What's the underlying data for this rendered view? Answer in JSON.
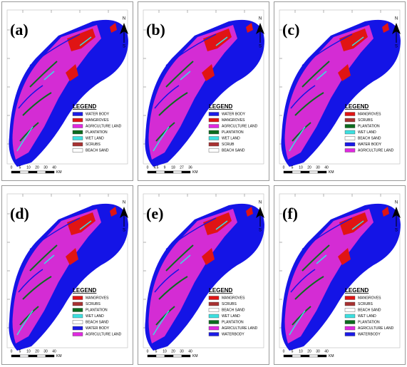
{
  "panels": [
    {
      "label": "(a)",
      "legend_title": "LEGEND",
      "legend": [
        {
          "label": "WATER BODY",
          "color": "#1a1ae6"
        },
        {
          "label": "MANGROVES",
          "color": "#e01414"
        },
        {
          "label": "AGRICULTURE LAND",
          "color": "#e028e0"
        },
        {
          "label": "PLANTATION",
          "color": "#0b6b1e"
        },
        {
          "label": "WET LAND",
          "color": "#3ce0e0"
        },
        {
          "label": "SCRUBS",
          "color": "#a83232"
        },
        {
          "label": "BEACH SAND",
          "color": "#ffffff"
        }
      ],
      "scale": [
        "0",
        "5",
        "10",
        "20",
        "30",
        "40"
      ],
      "scale_unit": "KM",
      "north": "N",
      "south": "S"
    },
    {
      "label": "(b)",
      "legend_title": "LEGEND",
      "legend": [
        {
          "label": "WATER BODY",
          "color": "#1a1ae6"
        },
        {
          "label": "MANGROVES",
          "color": "#e01414"
        },
        {
          "label": "AGRICULTURE LAND",
          "color": "#e028e0"
        },
        {
          "label": "PLANTATION",
          "color": "#0b6b1e"
        },
        {
          "label": "WET LAND",
          "color": "#3ce0e0"
        },
        {
          "label": "SCRUB",
          "color": "#a83232"
        },
        {
          "label": "BEACH SAND",
          "color": "#ffffff"
        }
      ],
      "scale": [
        "0",
        "4.5",
        "9",
        "18",
        "27",
        "36"
      ],
      "scale_unit": "KM",
      "north": "N",
      "south": "S"
    },
    {
      "label": "(c)",
      "legend_title": "LEGEND",
      "legend": [
        {
          "label": "MANGROVES",
          "color": "#e01414"
        },
        {
          "label": "SCRUBS",
          "color": "#a83232"
        },
        {
          "label": "PLANTATION",
          "color": "#0b6b1e"
        },
        {
          "label": "WET LAND",
          "color": "#3ce0e0"
        },
        {
          "label": "BEACH SAND",
          "color": "#ffffff"
        },
        {
          "label": "WATER BODY",
          "color": "#1a1ae6"
        },
        {
          "label": "AGRICULTURE LAND",
          "color": "#e028e0"
        }
      ],
      "scale": [
        "0",
        "5",
        "10",
        "20",
        "30",
        "40"
      ],
      "scale_unit": "KM",
      "north": "N",
      "south": "S"
    },
    {
      "label": "(d)",
      "legend_title": "LEGEND",
      "legend": [
        {
          "label": "MANGROVES",
          "color": "#e01414"
        },
        {
          "label": "SCRUBS",
          "color": "#a83232"
        },
        {
          "label": "PLANTATION",
          "color": "#0b6b1e"
        },
        {
          "label": "WET LAND",
          "color": "#3ce0e0"
        },
        {
          "label": "BEACH SAND",
          "color": "#ffffff"
        },
        {
          "label": "WATER BODY",
          "color": "#1a1ae6"
        },
        {
          "label": "AGRICULTURE LAND",
          "color": "#e028e0"
        }
      ],
      "scale": [
        "0",
        "5",
        "10",
        "20",
        "30",
        "40"
      ],
      "scale_unit": "KM",
      "north": "N",
      "south": "S"
    },
    {
      "label": "(e)",
      "legend_title": "LEGEND",
      "legend": [
        {
          "label": "MANGROVES",
          "color": "#e01414"
        },
        {
          "label": "SCRUBS",
          "color": "#a83232"
        },
        {
          "label": "BEACH SAND",
          "color": "#ffffff"
        },
        {
          "label": "WET LAND",
          "color": "#3ce0e0"
        },
        {
          "label": "PLANTATION",
          "color": "#0b6b1e"
        },
        {
          "label": "AGRICULTURE LAND",
          "color": "#e028e0"
        },
        {
          "label": "WATERBODY",
          "color": "#1a1ae6"
        }
      ],
      "scale": [
        "0",
        "5",
        "10",
        "20",
        "30",
        "40"
      ],
      "scale_unit": "KM",
      "north": "N",
      "south": "S"
    },
    {
      "label": "(f)",
      "legend_title": "LEGEND",
      "legend": [
        {
          "label": "MANGROVES",
          "color": "#e01414"
        },
        {
          "label": "SCRUBS",
          "color": "#a83232"
        },
        {
          "label": "BEACH SAND",
          "color": "#ffffff"
        },
        {
          "label": "WET LAND",
          "color": "#3ce0e0"
        },
        {
          "label": "PLANTATION",
          "color": "#0b6b1e"
        },
        {
          "label": "AGRICULTURE LAND",
          "color": "#e028e0"
        },
        {
          "label": "WATERBODY",
          "color": "#1a1ae6"
        }
      ],
      "scale": [
        "0",
        "5",
        "10",
        "20",
        "30",
        "40"
      ],
      "scale_unit": "KM",
      "north": "N",
      "south": "S"
    }
  ]
}
